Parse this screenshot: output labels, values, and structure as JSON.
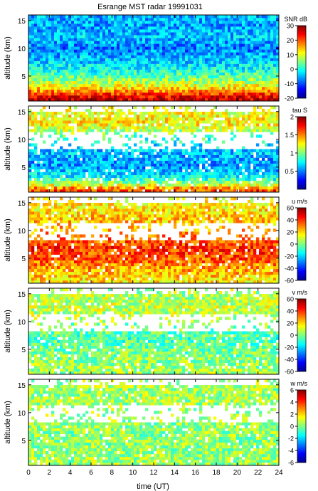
{
  "title": "Esrange MST radar 19991031",
  "chart_data": [
    {
      "type": "heatmap",
      "quantity": "SNR",
      "colorbar_label": "SNR dB",
      "ylabel": "altitude (km)",
      "ylim": [
        0.5,
        16
      ],
      "yticks": [
        5,
        10,
        15
      ],
      "xlim": [
        0,
        24
      ],
      "clim": [
        -20,
        30
      ],
      "colorbar_ticks": [
        -20,
        -10,
        0,
        10,
        20,
        30
      ],
      "profile": [
        {
          "altitude": 1,
          "value": 26
        },
        {
          "altitude": 2,
          "value": 20
        },
        {
          "altitude": 3,
          "value": 12
        },
        {
          "altitude": 4,
          "value": 7
        },
        {
          "altitude": 6,
          "value": 0
        },
        {
          "altitude": 8,
          "value": -4
        },
        {
          "altitude": 10,
          "value": -8
        },
        {
          "altitude": 12,
          "value": -4
        },
        {
          "altitude": 14,
          "value": -6
        },
        {
          "altitude": 15.5,
          "value": -5
        }
      ]
    },
    {
      "type": "heatmap",
      "quantity": "tau",
      "colorbar_label": "tau S",
      "ylabel": "altitude (km)",
      "ylim": [
        0.5,
        16
      ],
      "yticks": [
        5,
        10,
        15
      ],
      "xlim": [
        0,
        24
      ],
      "clim": [
        0,
        2
      ],
      "colorbar_ticks": [
        0.5,
        1,
        1.5,
        2
      ],
      "profile": [
        {
          "altitude": 1,
          "value": 1.6
        },
        {
          "altitude": 2,
          "value": 1.1
        },
        {
          "altitude": 3,
          "value": 0.8
        },
        {
          "altitude": 5,
          "value": 0.55
        },
        {
          "altitude": 7,
          "value": 0.6
        },
        {
          "altitude": 9,
          "value": 0.7
        },
        {
          "altitude": 11,
          "value": 1.0
        },
        {
          "altitude": 13,
          "value": 1.3
        },
        {
          "altitude": 15,
          "value": 1.2
        }
      ]
    },
    {
      "type": "heatmap",
      "quantity": "u",
      "colorbar_label": "u m/s",
      "ylabel": "altitude (km)",
      "ylim": [
        0.5,
        16
      ],
      "yticks": [
        5,
        10,
        15
      ],
      "xlim": [
        0,
        24
      ],
      "clim": [
        -60,
        60
      ],
      "colorbar_ticks": [
        -60,
        -40,
        -20,
        0,
        20,
        40,
        60
      ],
      "profile": [
        {
          "altitude": 1,
          "value": 18
        },
        {
          "altitude": 3,
          "value": 25
        },
        {
          "altitude": 5,
          "value": 36
        },
        {
          "altitude": 7,
          "value": 40
        },
        {
          "altitude": 9,
          "value": 30
        },
        {
          "altitude": 11,
          "value": 24
        },
        {
          "altitude": 13,
          "value": 20
        },
        {
          "altitude": 15,
          "value": 14
        }
      ]
    },
    {
      "type": "heatmap",
      "quantity": "v",
      "colorbar_label": "v m/s",
      "ylabel": "altitude (km)",
      "ylim": [
        0.5,
        16
      ],
      "yticks": [
        5,
        10,
        15
      ],
      "xlim": [
        0,
        24
      ],
      "clim": [
        -60,
        60
      ],
      "colorbar_ticks": [
        -60,
        -40,
        -20,
        0,
        20,
        40,
        60
      ],
      "profile": [
        {
          "altitude": 1,
          "value": 4
        },
        {
          "altitude": 3,
          "value": 2
        },
        {
          "altitude": 5,
          "value": -2
        },
        {
          "altitude": 7,
          "value": -6
        },
        {
          "altitude": 9,
          "value": 0
        },
        {
          "altitude": 11,
          "value": 6
        },
        {
          "altitude": 13,
          "value": 8
        },
        {
          "altitude": 15,
          "value": 5
        }
      ]
    },
    {
      "type": "heatmap",
      "quantity": "w",
      "colorbar_label": "w m/s",
      "ylabel": "altitude (km)",
      "xlabel": "time (UT)",
      "ylim": [
        0.5,
        16
      ],
      "yticks": [
        5,
        10,
        15
      ],
      "xlim": [
        0,
        24
      ],
      "xticks": [
        0,
        2,
        4,
        6,
        8,
        10,
        12,
        14,
        16,
        18,
        20,
        22,
        24
      ],
      "clim": [
        -6,
        6
      ],
      "colorbar_ticks": [
        -6,
        -4,
        -2,
        0,
        2,
        4,
        6
      ],
      "profile": [
        {
          "altitude": 1,
          "value": 0.4
        },
        {
          "altitude": 4,
          "value": 0.2
        },
        {
          "altitude": 8,
          "value": 0.3
        },
        {
          "altitude": 12,
          "value": 0.5
        },
        {
          "altitude": 15,
          "value": 0.4
        }
      ]
    }
  ]
}
